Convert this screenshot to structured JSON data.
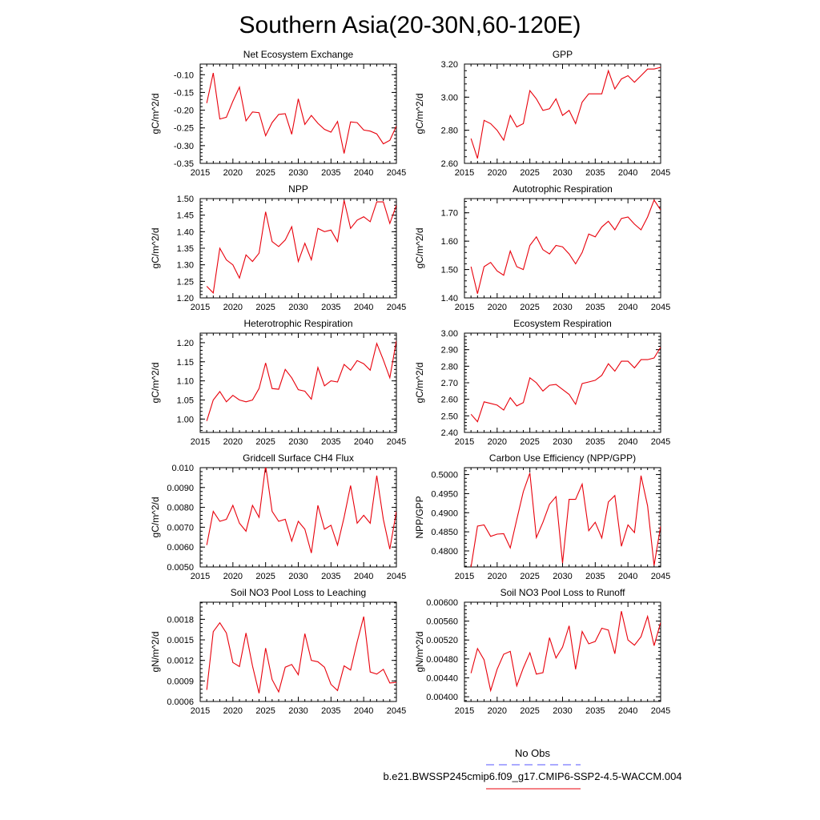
{
  "title": "Southern Asia(20-30N,60-120E)",
  "legend": {
    "obs_label": "No Obs",
    "obs_color": "#5555ff",
    "model_label": "b.e21.BWSSP245cmip6.f09_g17.CMIP6-SSP2-4.5-WACCM.004",
    "model_color": "#e8000b"
  },
  "chart_data": [
    {
      "type": "line",
      "title": "Net Ecosystem Exchange",
      "ylabel": "gC/m^2/d",
      "xlim": [
        2015,
        2045
      ],
      "ylim": [
        -0.35,
        -0.07
      ],
      "yticks": [
        -0.35,
        -0.3,
        -0.25,
        -0.2,
        -0.15,
        -0.1
      ],
      "ytick_labels": [
        "-0.35",
        "-0.30",
        "-0.25",
        "-0.20",
        "-0.15",
        "-0.10"
      ],
      "xticks": [
        2015,
        2020,
        2025,
        2030,
        2035,
        2040,
        2045
      ],
      "xtick_labels": [
        "2015",
        "2020",
        "2025",
        "2030",
        "2035",
        "2040",
        "2045"
      ],
      "x": [
        2016,
        2017,
        2018,
        2019,
        2020,
        2021,
        2022,
        2023,
        2024,
        2025,
        2026,
        2027,
        2028,
        2029,
        2030,
        2031,
        2032,
        2033,
        2034,
        2035,
        2036,
        2037,
        2038,
        2039,
        2040,
        2041,
        2042,
        2043,
        2044,
        2045
      ],
      "values": [
        -0.18,
        -0.095,
        -0.225,
        -0.22,
        -0.175,
        -0.135,
        -0.23,
        -0.205,
        -0.207,
        -0.272,
        -0.235,
        -0.212,
        -0.21,
        -0.268,
        -0.168,
        -0.24,
        -0.215,
        -0.237,
        -0.254,
        -0.262,
        -0.232,
        -0.322,
        -0.233,
        -0.235,
        -0.256,
        -0.259,
        -0.267,
        -0.295,
        -0.285,
        -0.245
      ]
    },
    {
      "type": "line",
      "title": "GPP",
      "ylabel": "gC/m^2/d",
      "xlim": [
        2015,
        2045
      ],
      "ylim": [
        2.6,
        3.2
      ],
      "yticks": [
        2.6,
        2.8,
        3.0,
        3.2
      ],
      "ytick_labels": [
        "2.60",
        "2.80",
        "3.00",
        "3.20"
      ],
      "xticks": [
        2015,
        2020,
        2025,
        2030,
        2035,
        2040,
        2045
      ],
      "xtick_labels": [
        "2015",
        "2020",
        "2025",
        "2030",
        "2035",
        "2040",
        "2045"
      ],
      "x": [
        2016,
        2017,
        2018,
        2019,
        2020,
        2021,
        2022,
        2023,
        2024,
        2025,
        2026,
        2027,
        2028,
        2029,
        2030,
        2031,
        2032,
        2033,
        2034,
        2035,
        2036,
        2037,
        2038,
        2039,
        2040,
        2041,
        2042,
        2043,
        2044,
        2045
      ],
      "values": [
        2.75,
        2.63,
        2.86,
        2.84,
        2.8,
        2.74,
        2.89,
        2.82,
        2.84,
        3.04,
        2.99,
        2.92,
        2.93,
        2.99,
        2.89,
        2.92,
        2.84,
        2.97,
        3.02,
        3.02,
        3.02,
        3.16,
        3.05,
        3.11,
        3.13,
        3.09,
        3.13,
        3.17,
        3.17,
        3.18
      ]
    },
    {
      "type": "line",
      "title": "NPP",
      "ylabel": "gC/m^2/d",
      "xlim": [
        2015,
        2045
      ],
      "ylim": [
        1.2,
        1.5
      ],
      "yticks": [
        1.2,
        1.25,
        1.3,
        1.35,
        1.4,
        1.45,
        1.5
      ],
      "ytick_labels": [
        "1.20",
        "1.25",
        "1.30",
        "1.35",
        "1.40",
        "1.45",
        "1.50"
      ],
      "xticks": [
        2015,
        2020,
        2025,
        2030,
        2035,
        2040,
        2045
      ],
      "xtick_labels": [
        "2015",
        "2020",
        "2025",
        "2030",
        "2035",
        "2040",
        "2045"
      ],
      "x": [
        2016,
        2017,
        2018,
        2019,
        2020,
        2021,
        2022,
        2023,
        2024,
        2025,
        2026,
        2027,
        2028,
        2029,
        2030,
        2031,
        2032,
        2033,
        2034,
        2035,
        2036,
        2037,
        2038,
        2039,
        2040,
        2041,
        2042,
        2043,
        2044,
        2045
      ],
      "values": [
        1.235,
        1.215,
        1.35,
        1.315,
        1.3,
        1.26,
        1.33,
        1.31,
        1.335,
        1.46,
        1.37,
        1.355,
        1.375,
        1.415,
        1.31,
        1.365,
        1.315,
        1.41,
        1.4,
        1.405,
        1.37,
        1.495,
        1.41,
        1.435,
        1.445,
        1.43,
        1.49,
        1.49,
        1.425,
        1.48
      ]
    },
    {
      "type": "line",
      "title": "Autotrophic Respiration",
      "ylabel": "gC/m^2/d",
      "xlim": [
        2015,
        2045
      ],
      "ylim": [
        1.4,
        1.75
      ],
      "yticks": [
        1.4,
        1.5,
        1.6,
        1.7
      ],
      "ytick_labels": [
        "1.40",
        "1.50",
        "1.60",
        "1.70"
      ],
      "xticks": [
        2015,
        2020,
        2025,
        2030,
        2035,
        2040,
        2045
      ],
      "xtick_labels": [
        "2015",
        "2020",
        "2025",
        "2030",
        "2035",
        "2040",
        "2045"
      ],
      "x": [
        2016,
        2017,
        2018,
        2019,
        2020,
        2021,
        2022,
        2023,
        2024,
        2025,
        2026,
        2027,
        2028,
        2029,
        2030,
        2031,
        2032,
        2033,
        2034,
        2035,
        2036,
        2037,
        2038,
        2039,
        2040,
        2041,
        2042,
        2043,
        2044,
        2045
      ],
      "values": [
        1.51,
        1.415,
        1.51,
        1.525,
        1.495,
        1.48,
        1.565,
        1.51,
        1.5,
        1.585,
        1.615,
        1.57,
        1.555,
        1.585,
        1.58,
        1.555,
        1.52,
        1.56,
        1.625,
        1.615,
        1.65,
        1.67,
        1.64,
        1.68,
        1.685,
        1.66,
        1.64,
        1.685,
        1.745,
        1.71
      ]
    },
    {
      "type": "line",
      "title": "Heterotrophic Respiration",
      "ylabel": "gC/m^2/d",
      "xlim": [
        2015,
        2045
      ],
      "ylim": [
        0.965,
        1.225
      ],
      "yticks": [
        1.0,
        1.05,
        1.1,
        1.15,
        1.2
      ],
      "ytick_labels": [
        "1.00",
        "1.05",
        "1.10",
        "1.15",
        "1.20"
      ],
      "xticks": [
        2015,
        2020,
        2025,
        2030,
        2035,
        2040,
        2045
      ],
      "xtick_labels": [
        "2015",
        "2020",
        "2025",
        "2030",
        "2035",
        "2040",
        "2045"
      ],
      "x": [
        2016,
        2017,
        2018,
        2019,
        2020,
        2021,
        2022,
        2023,
        2024,
        2025,
        2026,
        2027,
        2028,
        2029,
        2030,
        2031,
        2032,
        2033,
        2034,
        2035,
        2036,
        2037,
        2038,
        2039,
        2040,
        2041,
        2042,
        2043,
        2044,
        2045
      ],
      "values": [
        0.995,
        1.05,
        1.072,
        1.045,
        1.062,
        1.05,
        1.045,
        1.05,
        1.08,
        1.147,
        1.08,
        1.078,
        1.13,
        1.108,
        1.077,
        1.073,
        1.052,
        1.135,
        1.087,
        1.1,
        1.097,
        1.143,
        1.128,
        1.153,
        1.145,
        1.128,
        1.198,
        1.155,
        1.108,
        1.205
      ]
    },
    {
      "type": "line",
      "title": "Ecosystem Respiration",
      "ylabel": "gC/m^2/d",
      "xlim": [
        2015,
        2045
      ],
      "ylim": [
        2.4,
        3.0
      ],
      "yticks": [
        2.4,
        2.5,
        2.6,
        2.7,
        2.8,
        2.9,
        3.0
      ],
      "ytick_labels": [
        "2.40",
        "2.50",
        "2.60",
        "2.70",
        "2.80",
        "2.90",
        "3.00"
      ],
      "xticks": [
        2015,
        2020,
        2025,
        2030,
        2035,
        2040,
        2045
      ],
      "xtick_labels": [
        "2015",
        "2020",
        "2025",
        "2030",
        "2035",
        "2040",
        "2045"
      ],
      "x": [
        2016,
        2017,
        2018,
        2019,
        2020,
        2021,
        2022,
        2023,
        2024,
        2025,
        2026,
        2027,
        2028,
        2029,
        2030,
        2031,
        2032,
        2033,
        2034,
        2035,
        2036,
        2037,
        2038,
        2039,
        2040,
        2041,
        2042,
        2043,
        2044,
        2045
      ],
      "values": [
        2.51,
        2.465,
        2.585,
        2.575,
        2.565,
        2.535,
        2.61,
        2.56,
        2.58,
        2.73,
        2.7,
        2.65,
        2.685,
        2.69,
        2.66,
        2.63,
        2.57,
        2.695,
        2.705,
        2.715,
        2.745,
        2.815,
        2.77,
        2.83,
        2.83,
        2.79,
        2.84,
        2.84,
        2.85,
        2.915
      ]
    },
    {
      "type": "line",
      "title": "Gridcell Surface CH4 Flux",
      "ylabel": "gC/m^2/d",
      "xlim": [
        2015,
        2045
      ],
      "ylim": [
        0.005,
        0.01
      ],
      "yticks": [
        0.005,
        0.006,
        0.007,
        0.008,
        0.009,
        0.01
      ],
      "ytick_labels": [
        "0.0050",
        "0.0060",
        "0.0070",
        "0.0080",
        "0.0090",
        "0.010"
      ],
      "xticks": [
        2015,
        2020,
        2025,
        2030,
        2035,
        2040,
        2045
      ],
      "xtick_labels": [
        "2015",
        "2020",
        "2025",
        "2030",
        "2035",
        "2040",
        "2045"
      ],
      "x": [
        2016,
        2017,
        2018,
        2019,
        2020,
        2021,
        2022,
        2023,
        2024,
        2025,
        2026,
        2027,
        2028,
        2029,
        2030,
        2031,
        2032,
        2033,
        2034,
        2035,
        2036,
        2037,
        2038,
        2039,
        2040,
        2041,
        2042,
        2043,
        2044,
        2045
      ],
      "values": [
        0.0061,
        0.0078,
        0.0073,
        0.0074,
        0.0081,
        0.0072,
        0.0068,
        0.0081,
        0.0075,
        0.0101,
        0.0078,
        0.0073,
        0.0074,
        0.0063,
        0.0073,
        0.0069,
        0.0057,
        0.0081,
        0.0069,
        0.0071,
        0.0061,
        0.0075,
        0.0091,
        0.0072,
        0.0076,
        0.0072,
        0.0096,
        0.0074,
        0.0059,
        0.0078
      ]
    },
    {
      "type": "line",
      "title": "Carbon Use Efficiency (NPP/GPP)",
      "ylabel": "NPP/GPP",
      "xlim": [
        2015,
        2045
      ],
      "ylim": [
        0.4758,
        0.5018
      ],
      "yticks": [
        0.48,
        0.485,
        0.49,
        0.495,
        0.5
      ],
      "ytick_labels": [
        "0.4800",
        "0.4850",
        "0.4900",
        "0.4950",
        "0.5000"
      ],
      "xticks": [
        2015,
        2020,
        2025,
        2030,
        2035,
        2040,
        2045
      ],
      "xtick_labels": [
        "2015",
        "2020",
        "2025",
        "2030",
        "2035",
        "2040",
        "2045"
      ],
      "x": [
        2016,
        2017,
        2018,
        2019,
        2020,
        2021,
        2022,
        2023,
        2024,
        2025,
        2026,
        2027,
        2028,
        2029,
        2030,
        2031,
        2032,
        2033,
        2034,
        2035,
        2036,
        2037,
        2038,
        2039,
        2040,
        2041,
        2042,
        2043,
        2044,
        2045
      ],
      "values": [
        0.4758,
        0.4865,
        0.4868,
        0.4838,
        0.4844,
        0.4845,
        0.4808,
        0.4882,
        0.4955,
        0.5004,
        0.4835,
        0.4875,
        0.4922,
        0.4942,
        0.4768,
        0.4935,
        0.4935,
        0.4975,
        0.4853,
        0.4875,
        0.4834,
        0.4928,
        0.4945,
        0.4812,
        0.4868,
        0.4848,
        0.4997,
        0.4918,
        0.4762,
        0.4865
      ]
    },
    {
      "type": "line",
      "title": "Soil NO3 Pool Loss to Leaching",
      "ylabel": "gN/m^2/d",
      "xlim": [
        2015,
        2045
      ],
      "ylim": [
        0.0006,
        0.00205
      ],
      "yticks": [
        0.0006,
        0.0009,
        0.0012,
        0.0015,
        0.0018
      ],
      "ytick_labels": [
        "0.0006",
        "0.0009",
        "0.0012",
        "0.0015",
        "0.0018"
      ],
      "xticks": [
        2015,
        2020,
        2025,
        2030,
        2035,
        2040,
        2045
      ],
      "xtick_labels": [
        "2015",
        "2020",
        "2025",
        "2030",
        "2035",
        "2040",
        "2045"
      ],
      "x": [
        2016,
        2017,
        2018,
        2019,
        2020,
        2021,
        2022,
        2023,
        2024,
        2025,
        2026,
        2027,
        2028,
        2029,
        2030,
        2031,
        2032,
        2033,
        2034,
        2035,
        2036,
        2037,
        2038,
        2039,
        2040,
        2041,
        2042,
        2043,
        2044,
        2045
      ],
      "values": [
        0.00077,
        0.00162,
        0.00175,
        0.0016,
        0.00117,
        0.00111,
        0.0016,
        0.00112,
        0.00072,
        0.00138,
        0.00092,
        0.00074,
        0.0011,
        0.00114,
        0.00099,
        0.00159,
        0.0012,
        0.00118,
        0.0011,
        0.00085,
        0.00076,
        0.00112,
        0.00106,
        0.00147,
        0.00184,
        0.00103,
        0.001,
        0.00107,
        0.00087,
        0.00088
      ]
    },
    {
      "type": "line",
      "title": "Soil NO3 Pool Loss to Runoff",
      "ylabel": "gN/m^2/d",
      "xlim": [
        2015,
        2045
      ],
      "ylim": [
        0.0039,
        0.006
      ],
      "yticks": [
        0.004,
        0.0044,
        0.0048,
        0.0052,
        0.0056,
        0.006
      ],
      "ytick_labels": [
        "0.00400",
        "0.00440",
        "0.00480",
        "0.00520",
        "0.00560",
        "0.00600"
      ],
      "xticks": [
        2015,
        2020,
        2025,
        2030,
        2035,
        2040,
        2045
      ],
      "xtick_labels": [
        "2015",
        "2020",
        "2025",
        "2030",
        "2035",
        "2040",
        "2045"
      ],
      "x": [
        2016,
        2017,
        2018,
        2019,
        2020,
        2021,
        2022,
        2023,
        2024,
        2025,
        2026,
        2027,
        2028,
        2029,
        2030,
        2031,
        2032,
        2033,
        2034,
        2035,
        2036,
        2037,
        2038,
        2039,
        2040,
        2041,
        2042,
        2043,
        2044,
        2045
      ],
      "values": [
        0.0045,
        0.00502,
        0.00478,
        0.00413,
        0.00458,
        0.0049,
        0.00496,
        0.00423,
        0.00461,
        0.00493,
        0.00448,
        0.00451,
        0.00525,
        0.00482,
        0.00505,
        0.0055,
        0.00458,
        0.00538,
        0.00512,
        0.00517,
        0.00545,
        0.00541,
        0.00491,
        0.00581,
        0.0052,
        0.00509,
        0.00527,
        0.0057,
        0.00508,
        0.00557
      ]
    }
  ]
}
